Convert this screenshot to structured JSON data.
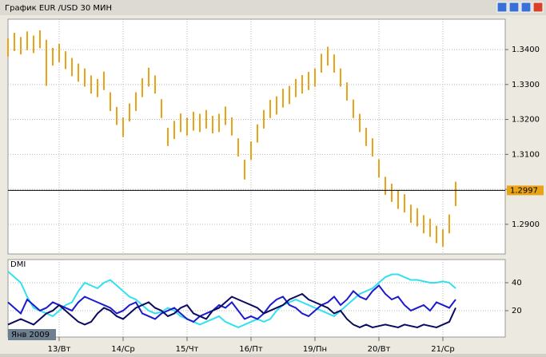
{
  "window": {
    "title": "График EUR /USD  30 МИН"
  },
  "chart_data": [
    {
      "type": "ohlc",
      "color": "#e8a317",
      "period": "Янв 2009",
      "high": [
        1.3432,
        1.3448,
        1.3436,
        1.3452,
        1.344,
        1.3455,
        1.3428,
        1.3405,
        1.3416,
        1.3395,
        1.3376,
        1.336,
        1.3346,
        1.3326,
        1.3316,
        1.3337,
        1.3278,
        1.3236,
        1.3206,
        1.3246,
        1.3278,
        1.3318,
        1.3348,
        1.3326,
        1.3258,
        1.3176,
        1.3196,
        1.3217,
        1.3205,
        1.3222,
        1.3216,
        1.3227,
        1.321,
        1.3216,
        1.3237,
        1.3206,
        1.3146,
        1.3085,
        1.3137,
        1.3186,
        1.3227,
        1.3256,
        1.3266,
        1.3288,
        1.3296,
        1.3316,
        1.3327,
        1.3336,
        1.3346,
        1.3388,
        1.3408,
        1.3386,
        1.3346,
        1.3306,
        1.3257,
        1.3216,
        1.3176,
        1.3146,
        1.3086,
        1.3036,
        1.3016,
        1.2996,
        1.2986,
        1.2956,
        1.2946,
        1.2926,
        1.2916,
        1.2896,
        1.2886,
        1.2928,
        1.3022
      ],
      "low": [
        1.338,
        1.3396,
        1.3386,
        1.3398,
        1.339,
        1.3404,
        1.3296,
        1.3354,
        1.3364,
        1.3344,
        1.3324,
        1.3308,
        1.3294,
        1.3274,
        1.3264,
        1.3284,
        1.3224,
        1.3184,
        1.315,
        1.3194,
        1.3224,
        1.3264,
        1.3294,
        1.3274,
        1.3204,
        1.3124,
        1.3144,
        1.3164,
        1.3154,
        1.3168,
        1.3164,
        1.3174,
        1.316,
        1.3164,
        1.3184,
        1.3154,
        1.3094,
        1.3028,
        1.3084,
        1.3134,
        1.3174,
        1.3204,
        1.3214,
        1.3234,
        1.3244,
        1.3264,
        1.3274,
        1.3284,
        1.3294,
        1.3334,
        1.3354,
        1.3334,
        1.3294,
        1.3254,
        1.3204,
        1.3164,
        1.3124,
        1.3094,
        1.3034,
        1.2984,
        1.2964,
        1.2944,
        1.2934,
        1.2904,
        1.2894,
        1.2874,
        1.2864,
        1.2846,
        1.2836,
        1.2874,
        1.2952
      ],
      "last": 1.2997,
      "xlim": [
        0,
        77.75
      ],
      "xticks": [
        {
          "value": 8,
          "label": "13/Вт"
        },
        {
          "value": 18,
          "label": "14/Ср"
        },
        {
          "value": 28,
          "label": "15/Чт"
        },
        {
          "value": 38,
          "label": "16/Пт"
        },
        {
          "value": 48,
          "label": "19/Пн"
        },
        {
          "value": 58,
          "label": "20/Вт"
        },
        {
          "value": 68,
          "label": "21/Ср"
        }
      ],
      "ylim": [
        1.2815,
        1.3487
      ],
      "yticks": [
        {
          "value": 1.29,
          "label": "1.2900"
        },
        {
          "value": 1.3,
          "label": "1.3000"
        },
        {
          "value": 1.31,
          "label": "1.3100"
        },
        {
          "value": 1.32,
          "label": "1.3200"
        },
        {
          "value": 1.33,
          "label": "1.3300"
        },
        {
          "value": 1.34,
          "label": "1.3400"
        }
      ],
      "grid": true
    },
    {
      "type": "line",
      "title": "DMI",
      "ylim": [
        1.1,
        56.6
      ],
      "yticks": [
        20,
        40
      ],
      "grid": true,
      "series": [
        {
          "color": "#33e0f0",
          "values": [
            48,
            44,
            40,
            30,
            22,
            20,
            18,
            16,
            20,
            24,
            26,
            34,
            40,
            38,
            36,
            40,
            42,
            38,
            34,
            30,
            28,
            24,
            20,
            18,
            19,
            22,
            20,
            16,
            14,
            12,
            10,
            12,
            14,
            16,
            12,
            10,
            8,
            10,
            12,
            14,
            12,
            14,
            20,
            24,
            26,
            28,
            26,
            24,
            22,
            20,
            18,
            16,
            20,
            24,
            28,
            32,
            34,
            36,
            40,
            44,
            46,
            46,
            44,
            42,
            42,
            41,
            40,
            40,
            41,
            40,
            36
          ]
        },
        {
          "color": "#1a1ad0",
          "values": [
            26,
            22,
            18,
            28,
            24,
            20,
            22,
            26,
            24,
            22,
            20,
            26,
            30,
            28,
            26,
            24,
            22,
            18,
            20,
            24,
            26,
            18,
            16,
            14,
            18,
            20,
            22,
            18,
            14,
            12,
            16,
            18,
            20,
            24,
            22,
            26,
            20,
            14,
            16,
            14,
            18,
            24,
            28,
            30,
            24,
            22,
            18,
            16,
            20,
            24,
            26,
            30,
            24,
            28,
            34,
            30,
            28,
            34,
            38,
            32,
            28,
            30,
            24,
            20,
            22,
            24,
            20,
            26,
            24,
            22,
            28
          ]
        },
        {
          "color": "#0a0a60",
          "values": [
            10,
            12,
            14,
            12,
            10,
            14,
            18,
            20,
            24,
            20,
            16,
            12,
            10,
            12,
            18,
            22,
            20,
            16,
            14,
            18,
            22,
            24,
            26,
            22,
            20,
            16,
            18,
            22,
            24,
            18,
            16,
            14,
            20,
            22,
            26,
            30,
            28,
            26,
            24,
            22,
            18,
            20,
            22,
            24,
            28,
            30,
            32,
            28,
            26,
            24,
            22,
            18,
            20,
            14,
            10,
            8,
            10,
            8,
            9,
            10,
            9,
            8,
            10,
            9,
            8,
            10,
            9,
            8,
            10,
            12,
            22
          ]
        }
      ]
    }
  ]
}
